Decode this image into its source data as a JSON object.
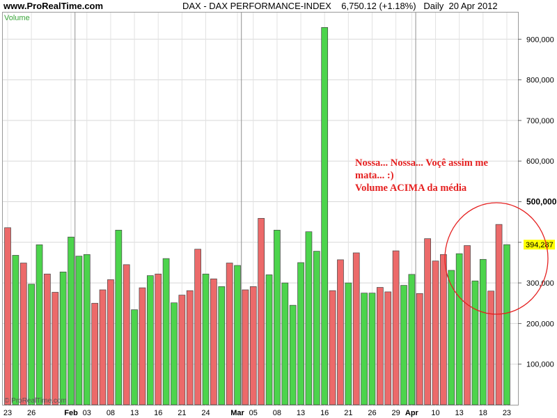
{
  "header": {
    "site": "www.ProRealTime.com",
    "title": "DAX - DAX PERFORMANCE-INDEX    6,750.12 (+1.18%)   Daily  20 Apr 2012"
  },
  "colors": {
    "up": "#4cd44c",
    "down": "#ec6a6a",
    "annotation": "#e52020",
    "last_value_bg": "#ffff00"
  },
  "annotation": {
    "line1": "Nossa... Nossa... Voçê assim me",
    "line2": "mata... :)",
    "line3": "Volume ACIMA da média"
  },
  "copyright": "© ProRealTime.com",
  "chart_data": {
    "type": "bar",
    "panel_label": "Volume",
    "ylim": [
      0,
      1000000
    ],
    "y_ticks": [
      {
        "value": 100000,
        "label": "100,000"
      },
      {
        "value": 200000,
        "label": "200,000"
      },
      {
        "value": 300000,
        "label": "300,000"
      },
      {
        "value": 400000,
        "label": "400,000"
      },
      {
        "value": 500000,
        "label": "500,000"
      },
      {
        "value": 600000,
        "label": "600,000"
      },
      {
        "value": 700000,
        "label": "700,000"
      },
      {
        "value": 800000,
        "label": "800,000"
      },
      {
        "value": 900000,
        "label": "900,000"
      }
    ],
    "emphasized_tick": "500,000",
    "last_value": {
      "value": 394287,
      "label": "394,287"
    },
    "x_tick_labels": [
      {
        "index": 0,
        "label": "23",
        "bold": false
      },
      {
        "index": 3,
        "label": "26",
        "bold": false
      },
      {
        "index": 8,
        "label": "Feb",
        "bold": true
      },
      {
        "index": 10,
        "label": "03",
        "bold": false
      },
      {
        "index": 13,
        "label": "08",
        "bold": false
      },
      {
        "index": 16,
        "label": "13",
        "bold": false
      },
      {
        "index": 19,
        "label": "16",
        "bold": false
      },
      {
        "index": 22,
        "label": "21",
        "bold": false
      },
      {
        "index": 25,
        "label": "24",
        "bold": false
      },
      {
        "index": 29,
        "label": "Mar",
        "bold": true
      },
      {
        "index": 31,
        "label": "05",
        "bold": false
      },
      {
        "index": 34,
        "label": "08",
        "bold": false
      },
      {
        "index": 37,
        "label": "13",
        "bold": false
      },
      {
        "index": 40,
        "label": "16",
        "bold": false
      },
      {
        "index": 43,
        "label": "21",
        "bold": false
      },
      {
        "index": 46,
        "label": "26",
        "bold": false
      },
      {
        "index": 49,
        "label": "29",
        "bold": false
      },
      {
        "index": 51,
        "label": "Apr",
        "bold": true
      },
      {
        "index": 54,
        "label": "10",
        "bold": false
      },
      {
        "index": 57,
        "label": "13",
        "bold": false
      },
      {
        "index": 60,
        "label": "18",
        "bold": false
      },
      {
        "index": 63,
        "label": "23",
        "bold": false
      }
    ],
    "month_separators": [
      8.5,
      29.5,
      51.5
    ],
    "values": [
      436000,
      368000,
      349000,
      297000,
      394000,
      322000,
      277000,
      327000,
      413000,
      366000,
      370000,
      250000,
      283000,
      308000,
      430000,
      345000,
      234000,
      288000,
      318000,
      322000,
      360000,
      251000,
      270000,
      281000,
      383000,
      322000,
      310000,
      291000,
      349000,
      343000,
      283000,
      291000,
      459000,
      320000,
      430000,
      300000,
      245000,
      350000,
      426000,
      378000,
      929000,
      281000,
      357000,
      300000,
      374000,
      275000,
      275000,
      289000,
      278000,
      379000,
      294000,
      321000,
      274000,
      409000,
      354000,
      370000,
      331000,
      372000,
      392000,
      305000,
      358000,
      280000,
      444000,
      394287
    ],
    "directions": [
      "down",
      "up",
      "down",
      "up",
      "up",
      "down",
      "down",
      "up",
      "up",
      "up",
      "up",
      "down",
      "down",
      "down",
      "up",
      "down",
      "up",
      "down",
      "up",
      "down",
      "up",
      "up",
      "down",
      "down",
      "down",
      "up",
      "down",
      "up",
      "down",
      "up",
      "down",
      "down",
      "down",
      "up",
      "up",
      "up",
      "up",
      "up",
      "up",
      "up",
      "up",
      "down",
      "down",
      "up",
      "down",
      "up",
      "up",
      "down",
      "down",
      "down",
      "up",
      "up",
      "down",
      "down",
      "down",
      "down",
      "up",
      "up",
      "down",
      "up",
      "up",
      "down",
      "down",
      "up"
    ]
  }
}
